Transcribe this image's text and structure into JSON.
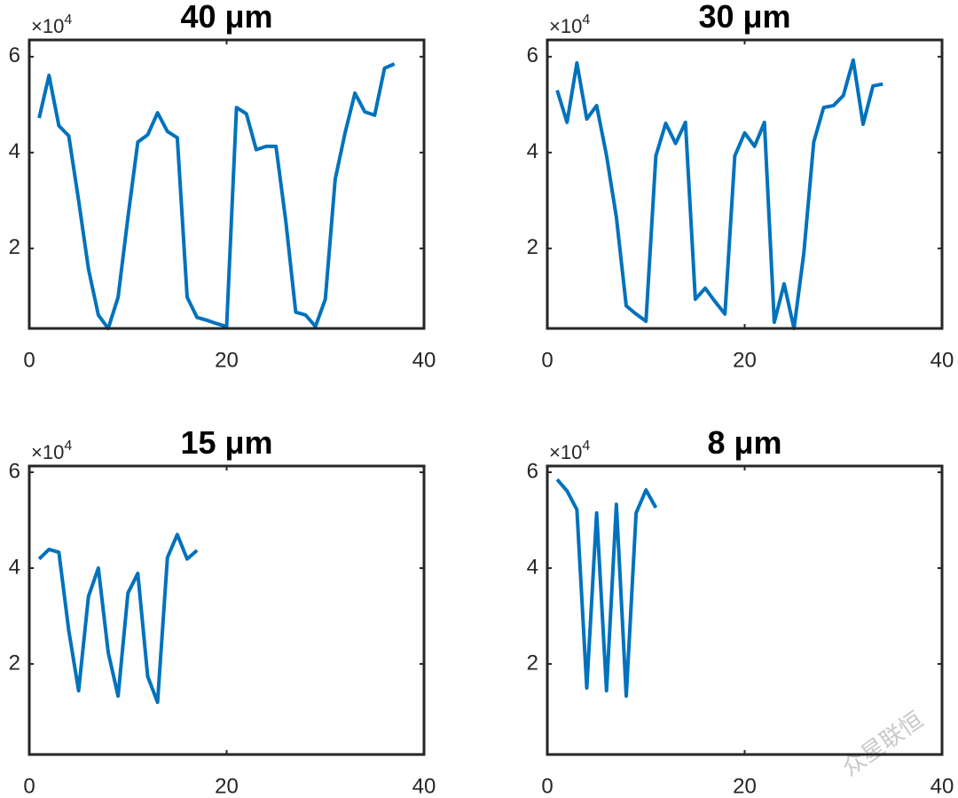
{
  "chart_data": [
    {
      "type": "line",
      "title": "40 μm",
      "y_multiplier": "×10",
      "y_multiplier_exp": "4",
      "x": [
        1,
        2,
        3,
        4,
        5,
        6,
        7,
        8,
        9,
        10,
        11,
        12,
        13,
        14,
        15,
        16,
        17,
        18,
        19,
        20,
        21,
        22,
        23,
        24,
        25,
        26,
        27,
        28,
        29,
        30,
        31,
        32,
        33,
        34,
        35,
        36,
        37
      ],
      "values": [
        4.72,
        5.61,
        4.56,
        4.35,
        3.0,
        1.57,
        0.61,
        0.33,
        0.98,
        2.65,
        4.22,
        4.37,
        4.83,
        4.44,
        4.31,
        0.98,
        0.56,
        0.5,
        0.43,
        0.37,
        4.94,
        4.81,
        4.06,
        4.13,
        4.13,
        2.56,
        0.67,
        0.61,
        0.37,
        0.94,
        3.44,
        4.41,
        5.24,
        4.85,
        4.78,
        5.76,
        5.85
      ],
      "color": "#0072bd",
      "xlim": [
        0,
        40
      ],
      "xticks": [
        0,
        20,
        40
      ],
      "ylim": [
        0.33,
        6.35
      ],
      "yticks": [
        2,
        4,
        6
      ]
    },
    {
      "type": "line",
      "title": "30 μm",
      "y_multiplier": "×10",
      "y_multiplier_exp": "4",
      "x": [
        1,
        2,
        3,
        4,
        5,
        6,
        7,
        8,
        9,
        10,
        11,
        12,
        13,
        14,
        15,
        16,
        17,
        18,
        19,
        20,
        21,
        22,
        23,
        24,
        25,
        26,
        27,
        28,
        29,
        30,
        31,
        32,
        33,
        34
      ],
      "values": [
        5.3,
        4.63,
        5.87,
        4.7,
        4.98,
        3.94,
        2.65,
        0.8,
        0.63,
        0.48,
        3.93,
        4.61,
        4.19,
        4.63,
        0.94,
        1.17,
        0.89,
        0.63,
        3.93,
        4.41,
        4.13,
        4.63,
        0.46,
        1.26,
        0.33,
        1.91,
        4.22,
        4.94,
        4.98,
        5.19,
        5.93,
        4.59,
        5.39,
        5.43
      ],
      "color": "#0072bd",
      "xlim": [
        0,
        40
      ],
      "xticks": [
        0,
        20,
        40
      ],
      "ylim": [
        0.33,
        6.35
      ],
      "yticks": [
        2,
        4,
        6
      ]
    },
    {
      "type": "line",
      "title": "15 μm",
      "y_multiplier": "×10",
      "y_multiplier_exp": "4",
      "x": [
        1,
        2,
        3,
        4,
        5,
        6,
        7,
        8,
        9,
        10,
        11,
        12,
        13,
        14,
        15,
        16,
        17
      ],
      "values": [
        4.19,
        4.39,
        4.33,
        2.7,
        1.44,
        3.41,
        4.0,
        2.24,
        1.33,
        3.48,
        3.89,
        1.74,
        1.2,
        4.22,
        4.7,
        4.19,
        4.37
      ],
      "color": "#0072bd",
      "xlim": [
        0,
        40
      ],
      "xticks": [
        0,
        20,
        40
      ],
      "ylim": [
        0.11,
        6.13
      ],
      "yticks": [
        2,
        4,
        6
      ]
    },
    {
      "type": "line",
      "title": "8 μm",
      "y_multiplier": "×10",
      "y_multiplier_exp": "4",
      "x": [
        1,
        2,
        3,
        4,
        5,
        6,
        7,
        8,
        9,
        10,
        11
      ],
      "values": [
        5.85,
        5.61,
        5.22,
        1.5,
        5.15,
        1.44,
        5.33,
        1.33,
        5.15,
        5.63,
        5.26
      ],
      "color": "#0072bd",
      "xlim": [
        0,
        40
      ],
      "xticks": [
        0,
        20,
        40
      ],
      "ylim": [
        0.11,
        6.13
      ],
      "yticks": [
        2,
        4,
        6
      ]
    }
  ],
  "watermark": "众星联恒"
}
